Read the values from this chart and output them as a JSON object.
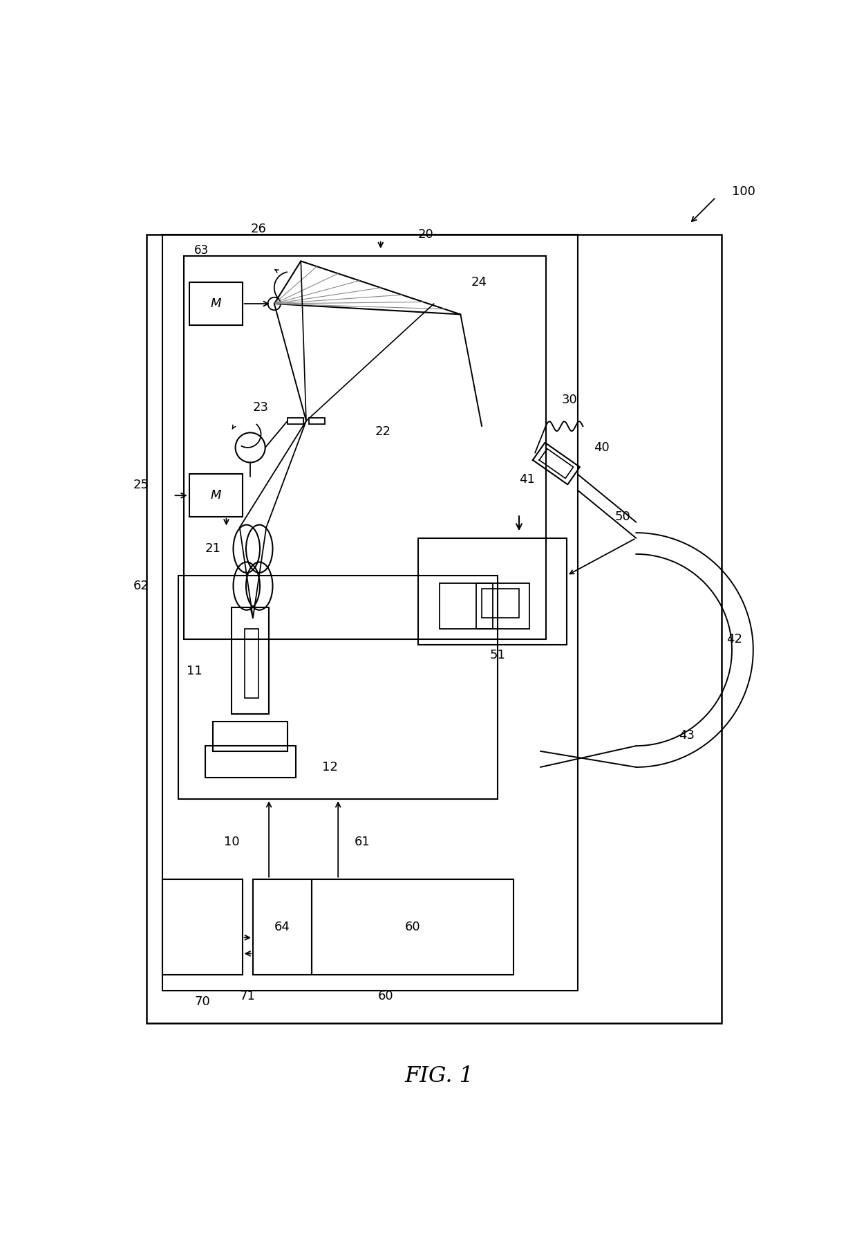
{
  "bg_color": "#ffffff",
  "fig_label": "FIG. 1",
  "lw_main": 1.8,
  "lw_med": 1.5,
  "lw_thin": 1.2,
  "fs_label": 13
}
